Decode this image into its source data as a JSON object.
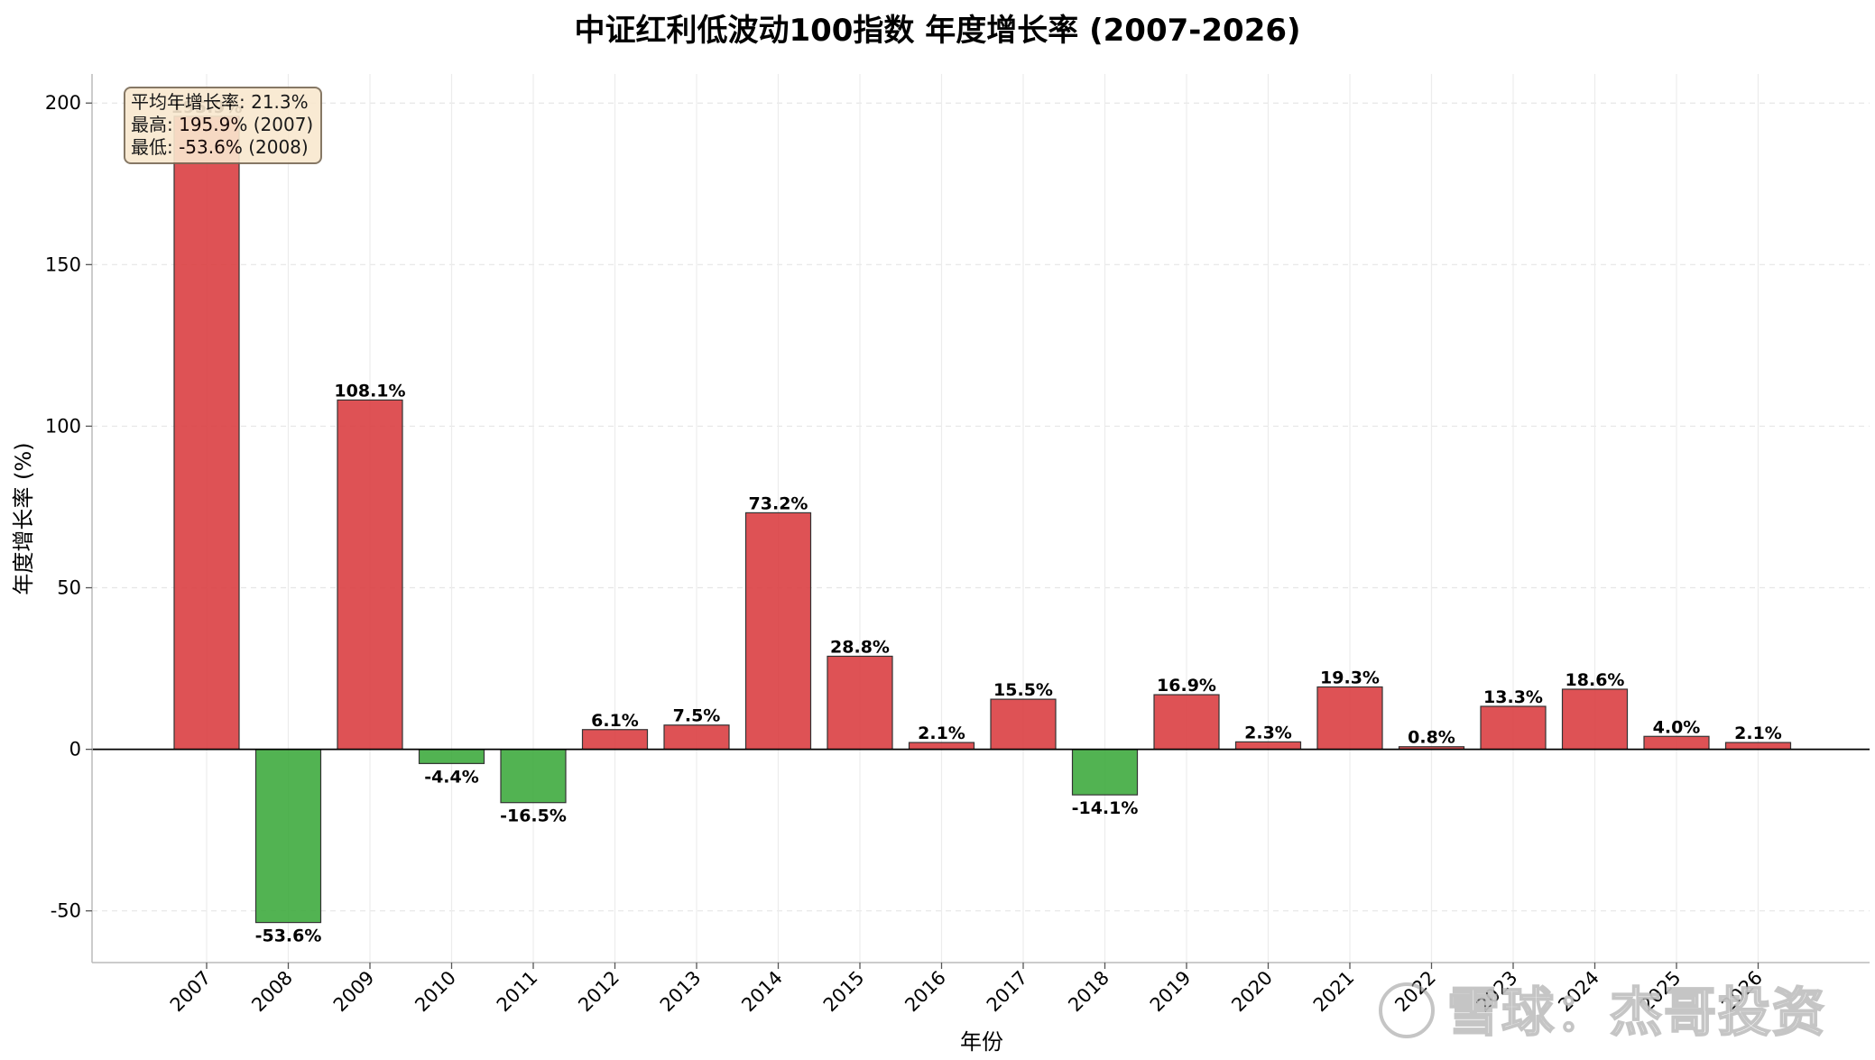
{
  "chart_data": {
    "type": "bar",
    "title": "中证红利低波动100指数 年度增长率 (2007-2026)",
    "xlabel": "年份",
    "ylabel": "年度增长率 (%)",
    "categories": [
      "2007",
      "2008",
      "2009",
      "2010",
      "2011",
      "2012",
      "2013",
      "2014",
      "2015",
      "2016",
      "2017",
      "2018",
      "2019",
      "2020",
      "2021",
      "2022",
      "2023",
      "2024",
      "2025",
      "2026"
    ],
    "values": [
      195.9,
      -53.6,
      108.1,
      -4.4,
      -16.5,
      6.1,
      7.5,
      73.2,
      28.8,
      2.1,
      15.5,
      -14.1,
      16.9,
      2.3,
      19.3,
      0.8,
      13.3,
      18.6,
      4.0,
      2.1
    ],
    "value_labels": [
      "195.9%",
      "-53.6%",
      "108.1%",
      "-4.4%",
      "-16.5%",
      "6.1%",
      "7.5%",
      "73.2%",
      "28.8%",
      "2.1%",
      "15.5%",
      "-14.1%",
      "16.9%",
      "2.3%",
      "19.3%",
      "0.8%",
      "13.3%",
      "18.6%",
      "4.0%",
      "2.1%"
    ],
    "ylim": [
      -66,
      209
    ],
    "yticks": [
      -50,
      0,
      50,
      100,
      150,
      200
    ],
    "grid": true,
    "colors": {
      "positive": "#d93a3d",
      "negative": "#3aa83a",
      "edge": "#333333"
    }
  },
  "stats": {
    "average": "平均年增长率: 21.3%",
    "highest": "最高: 195.9% (2007)",
    "lowest": "最低: -53.6% (2008)"
  },
  "watermark": "雪球：杰哥投资"
}
